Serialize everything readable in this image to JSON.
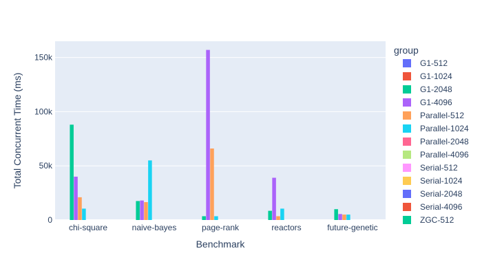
{
  "chart_data": {
    "type": "bar",
    "barmode": "group",
    "xlabel": "Benchmark",
    "ylabel": "Total Concurrent Time (ms)",
    "ylim": [
      0,
      165000
    ],
    "yticks": [
      0,
      50000,
      100000,
      150000
    ],
    "ytick_labels": [
      "0",
      "50k",
      "100k",
      "150k"
    ],
    "grid": true,
    "legend_title": "group",
    "legend_position": "right",
    "categories": [
      "chi-square",
      "naive-bayes",
      "page-rank",
      "reactors",
      "future-genetic"
    ],
    "series": [
      {
        "name": "G1-512",
        "color": "#636efa",
        "values": [
          0,
          0,
          0,
          0,
          0
        ]
      },
      {
        "name": "G1-1024",
        "color": "#EF553B",
        "values": [
          0,
          0,
          0,
          0,
          0
        ]
      },
      {
        "name": "G1-2048",
        "color": "#00cc96",
        "values": [
          88000,
          17500,
          3500,
          8500,
          10000
        ]
      },
      {
        "name": "G1-4096",
        "color": "#ab63fa",
        "values": [
          40000,
          18000,
          157000,
          39000,
          5500
        ]
      },
      {
        "name": "Parallel-512",
        "color": "#FFA15A",
        "values": [
          21000,
          16500,
          66000,
          3500,
          5000
        ]
      },
      {
        "name": "Parallel-1024",
        "color": "#19d3f3",
        "values": [
          10500,
          55000,
          3500,
          10500,
          5000
        ]
      },
      {
        "name": "Parallel-2048",
        "color": "#FF6692",
        "values": [
          0,
          0,
          0,
          0,
          0
        ]
      },
      {
        "name": "Parallel-4096",
        "color": "#B6E880",
        "values": [
          0,
          0,
          0,
          0,
          0
        ]
      },
      {
        "name": "Serial-512",
        "color": "#FF97FF",
        "values": [
          0,
          0,
          0,
          0,
          0
        ]
      },
      {
        "name": "Serial-1024",
        "color": "#FECB52",
        "values": [
          0,
          0,
          0,
          0,
          0
        ]
      },
      {
        "name": "Serial-2048",
        "color": "#636efa",
        "values": [
          0,
          0,
          0,
          0,
          0
        ]
      },
      {
        "name": "Serial-4096",
        "color": "#EF553B",
        "values": [
          0,
          0,
          0,
          0,
          0
        ]
      },
      {
        "name": "ZGC-512",
        "color": "#00cc96",
        "values": [
          0,
          0,
          0,
          0,
          0
        ]
      }
    ]
  }
}
